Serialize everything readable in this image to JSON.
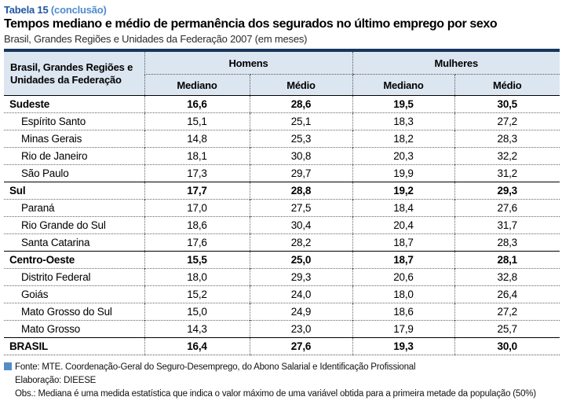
{
  "title_block": {
    "table_label": "Tabela 15",
    "table_label_suffix": "(conclusão)",
    "main_title": "Tempos mediano e médio de permanência dos segurados no último emprego por sexo",
    "subtitle": "Brasil, Grandes Regiões e Unidades da Federação 2007 (em meses)"
  },
  "table": {
    "stub_header": "Brasil, Grandes Regiões e Unidades da Federação",
    "group_headers": [
      "Homens",
      "Mulheres"
    ],
    "sub_headers": [
      "Mediano",
      "Médio",
      "Mediano",
      "Médio"
    ],
    "rows": [
      {
        "region": "Sudeste",
        "values": [
          "16,6",
          "28,6",
          "19,5",
          "30,5"
        ]
      },
      {
        "region": "Espírito Santo",
        "values": [
          "15,1",
          "25,1",
          "18,3",
          "27,2"
        ]
      },
      {
        "region": "Minas Gerais",
        "values": [
          "14,8",
          "25,3",
          "18,2",
          "28,3"
        ]
      },
      {
        "region": "Rio de Janeiro",
        "values": [
          "18,1",
          "30,8",
          "20,3",
          "32,2"
        ]
      },
      {
        "region": "São Paulo",
        "values": [
          "17,3",
          "29,7",
          "19,9",
          "31,2"
        ]
      },
      {
        "region": "Sul",
        "values": [
          "17,7",
          "28,8",
          "19,2",
          "29,3"
        ]
      },
      {
        "region": "Paraná",
        "values": [
          "17,0",
          "27,5",
          "18,4",
          "27,6"
        ]
      },
      {
        "region": "Rio Grande do Sul",
        "values": [
          "18,6",
          "30,4",
          "20,4",
          "31,7"
        ]
      },
      {
        "region": "Santa Catarina",
        "values": [
          "17,6",
          "28,2",
          "18,7",
          "28,3"
        ]
      },
      {
        "region": "Centro-Oeste",
        "values": [
          "15,5",
          "25,0",
          "18,7",
          "28,1"
        ]
      },
      {
        "region": "Distrito Federal",
        "values": [
          "18,0",
          "29,3",
          "20,6",
          "32,8"
        ]
      },
      {
        "region": "Goiás",
        "values": [
          "15,2",
          "24,0",
          "18,0",
          "26,4"
        ]
      },
      {
        "region": "Mato Grosso do Sul",
        "values": [
          "15,0",
          "24,9",
          "18,6",
          "27,2"
        ]
      },
      {
        "region": "Mato Grosso",
        "values": [
          "14,3",
          "23,0",
          "17,9",
          "25,7"
        ]
      },
      {
        "region": "BRASIL",
        "values": [
          "16,4",
          "27,6",
          "19,3",
          "30,0"
        ]
      }
    ]
  },
  "footer": {
    "fonte": "Fonte: MTE. Coordenação-Geral do Seguro-Desemprego, do Abono Salarial e Identificação Profissional",
    "elaboracao": "Elaboração: DIEESE",
    "obs": "Obs.: Mediana é uma medida estatística que indica o valor máximo de uma variável obtida para a primeira metade da população (50%)"
  },
  "colors": {
    "top_border_navy": "#17375d",
    "header_bg_light_blue": "#dce6f1",
    "table_label_blue": "#1f57a4",
    "table_label_suffix_blue": "#4d8bd1",
    "source_square_blue": "#548dc6"
  }
}
